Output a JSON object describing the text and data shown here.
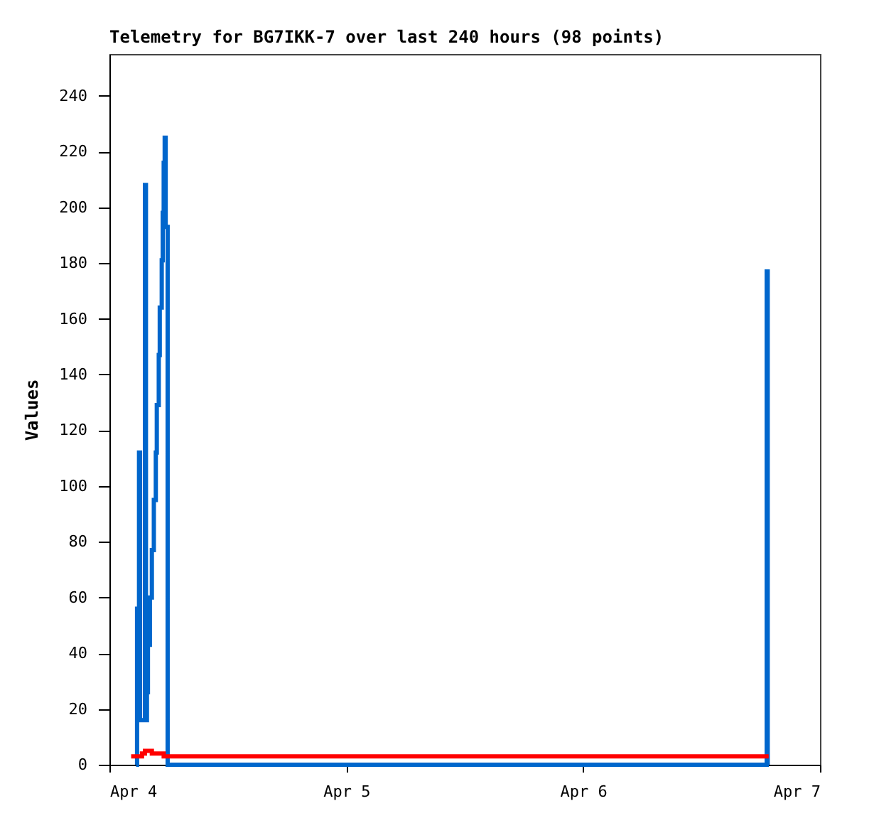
{
  "chart_data": {
    "type": "step",
    "title": "Telemetry for BG7IKK-7 over last 240 hours (98 points)",
    "ylabel": "Values",
    "xlim": [
      "--04-04",
      "--04-07"
    ],
    "xticks": [
      {
        "value": "--04-04",
        "label": "Apr 4"
      },
      {
        "value": "--04-05",
        "label": "Apr 5"
      },
      {
        "value": "--04-06",
        "label": "Apr 6"
      },
      {
        "value": "--04-07",
        "label": "Apr 7"
      }
    ],
    "ylim": [
      0,
      255
    ],
    "yticks": [
      0,
      20,
      40,
      60,
      80,
      100,
      120,
      140,
      160,
      180,
      200,
      220,
      240
    ],
    "grid": false,
    "line_style": "solid",
    "series": [
      {
        "color": "#0066cc",
        "x": [
          "--04-04T02:42",
          "--04-04T02:48",
          "--04-04T02:54",
          "--04-04T03:00",
          "--04-04T03:06",
          "--04-04T03:18",
          "--04-04T03:30",
          "--04-04T03:36",
          "--04-04T03:42",
          "--04-04T03:48",
          "--04-04T03:54",
          "--04-04T04:06",
          "--04-04T04:18",
          "--04-04T04:30",
          "--04-04T04:42",
          "--04-04T04:48",
          "--04-04T05:00",
          "--04-04T05:06",
          "--04-04T05:18",
          "--04-04T05:24",
          "--04-04T05:30",
          "--04-04T05:36",
          "--04-04T05:42",
          "--04-04T05:54",
          "--04-06T18:30",
          "--04-06T18:36",
          "--04-06T18:42"
        ],
        "values": [
          0,
          56,
          16,
          112,
          16,
          16,
          16,
          208,
          16,
          26,
          43,
          60,
          77,
          95,
          112,
          129,
          147,
          164,
          181,
          198,
          216,
          225,
          193,
          0,
          0,
          177,
          0
        ]
      },
      {
        "color": "#ff0000",
        "x": [
          "--04-04T02:12",
          "--04-04T03:18",
          "--04-04T03:36",
          "--04-04T04:18",
          "--04-04T05:30",
          "--04-06T18:48"
        ],
        "values": [
          3,
          4,
          5,
          4,
          3,
          3
        ]
      }
    ]
  }
}
